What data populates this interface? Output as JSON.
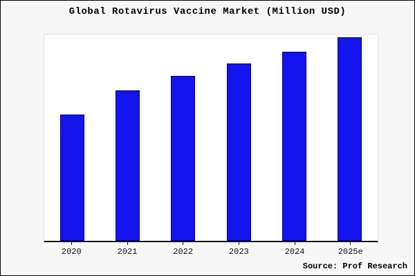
{
  "title": "Global Rotavirus Vaccine Market (Million USD)",
  "source": "Source: Prof Research",
  "colors": {
    "bar_fill": "#1414ee",
    "bar_edge": "#000080",
    "axis": "#111111",
    "figure_background": "#f7f7f7",
    "plot_background": "#ffffff"
  },
  "chart_data": {
    "type": "bar",
    "title": "Global Rotavirus Vaccine Market (Million USD)",
    "categories": [
      "2020",
      "2021",
      "2022",
      "2023",
      "2024",
      "2025e"
    ],
    "values": [
      62,
      74,
      81,
      87,
      93,
      100
    ],
    "xlabel": "",
    "ylabel": "",
    "ylim": [
      0,
      101
    ],
    "grid": false,
    "legend": false,
    "y_axis_labels_visible": false,
    "note": "No y-axis tick labels shown; values are relative units estimated from bar heights"
  }
}
